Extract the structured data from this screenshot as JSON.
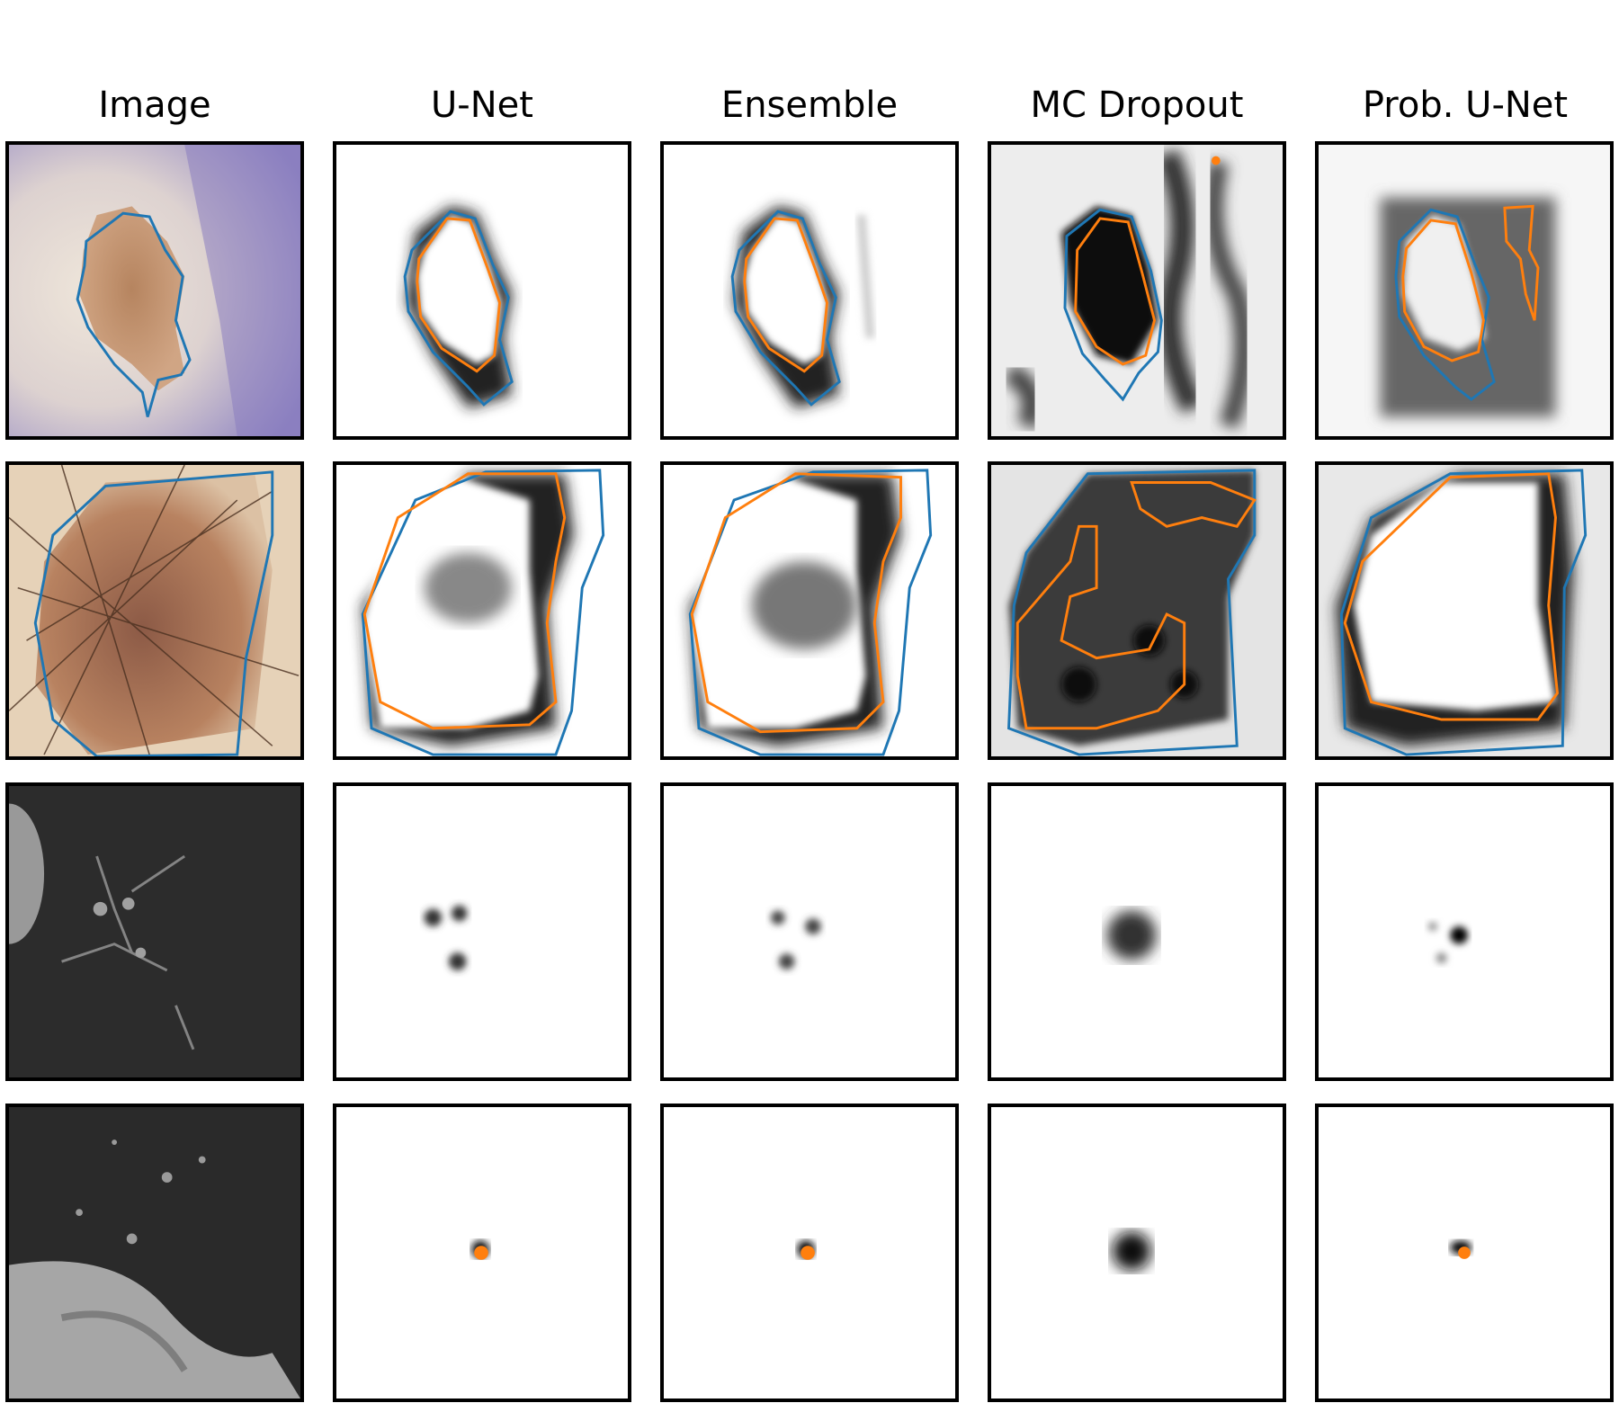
{
  "columns": [
    {
      "title": "Image"
    },
    {
      "title": "U-Net"
    },
    {
      "title": "Ensemble"
    },
    {
      "title": "MC Dropout"
    },
    {
      "title": "Prob. U-Net"
    }
  ],
  "colors": {
    "ground_truth_contour": "#1f77b4",
    "prediction_contour": "#ff7f0e",
    "frame": "#000000"
  },
  "rows": [
    {
      "kind": "dermoscopy-1"
    },
    {
      "kind": "dermoscopy-2"
    },
    {
      "kind": "ct-1"
    },
    {
      "kind": "ct-2"
    }
  ]
}
